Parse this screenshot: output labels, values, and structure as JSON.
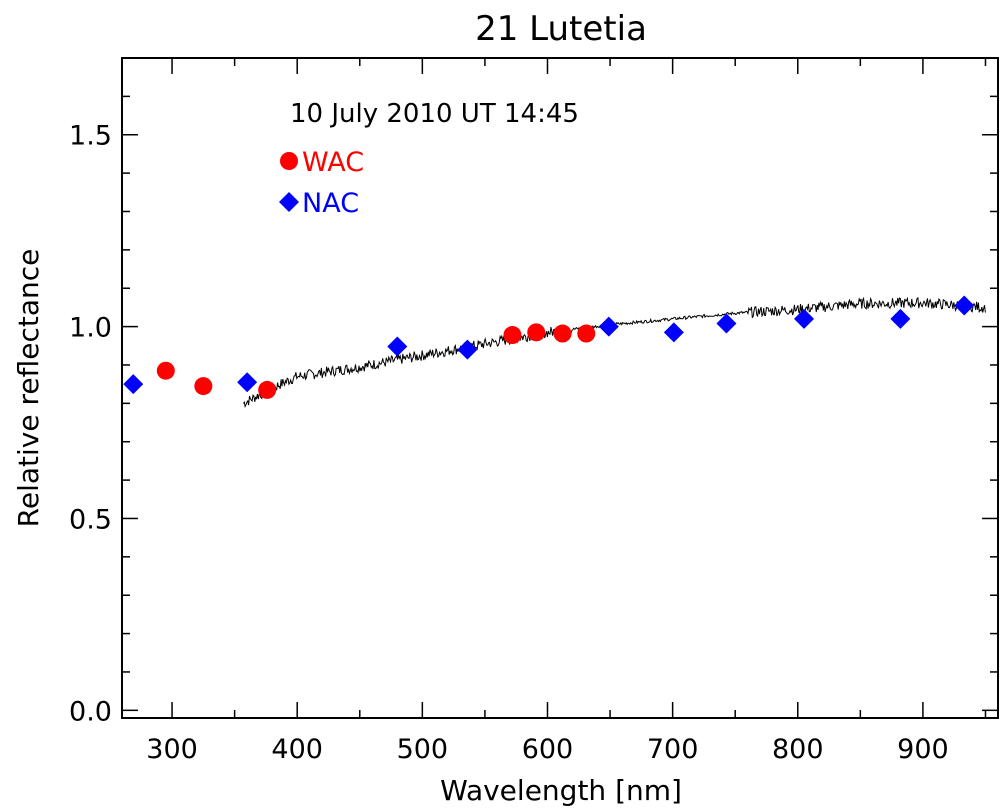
{
  "chart_data": {
    "type": "scatter",
    "title": "21 Lutetia",
    "annotation": "10 July 2010 UT 14:45",
    "xlabel": "Wavelength [nm]",
    "ylabel": "Relative reflectance",
    "xlim": [
      260,
      960
    ],
    "ylim": [
      -0.02,
      1.7
    ],
    "xticks": [
      300,
      400,
      500,
      600,
      700,
      800,
      900
    ],
    "yticks": [
      0.0,
      0.5,
      1.0,
      1.5
    ],
    "xtick_labels": [
      "300",
      "400",
      "500",
      "600",
      "700",
      "800",
      "900"
    ],
    "ytick_labels": [
      "0.0",
      "0.5",
      "1.0",
      "1.5"
    ],
    "legend_position": "top-left",
    "series": [
      {
        "name": "WAC",
        "marker": "circle",
        "color": "#ff0000",
        "points": [
          {
            "x": 295,
            "y": 0.885
          },
          {
            "x": 325,
            "y": 0.845
          },
          {
            "x": 376,
            "y": 0.835
          },
          {
            "x": 572,
            "y": 0.978
          },
          {
            "x": 591,
            "y": 0.985
          },
          {
            "x": 612,
            "y": 0.982
          },
          {
            "x": 631,
            "y": 0.982
          }
        ]
      },
      {
        "name": "NAC",
        "marker": "diamond",
        "color": "#0000ff",
        "points": [
          {
            "x": 269,
            "y": 0.85
          },
          {
            "x": 360,
            "y": 0.855
          },
          {
            "x": 480,
            "y": 0.948
          },
          {
            "x": 536,
            "y": 0.94
          },
          {
            "x": 649,
            "y": 1.0
          },
          {
            "x": 701,
            "y": 0.985
          },
          {
            "x": 743,
            "y": 1.008
          },
          {
            "x": 805,
            "y": 1.02
          },
          {
            "x": 882,
            "y": 1.02
          },
          {
            "x": 933,
            "y": 1.055
          }
        ]
      },
      {
        "type": "line",
        "color": "#000000",
        "points": [
          {
            "x": 357,
            "y": 0.8
          },
          {
            "x": 380,
            "y": 0.84
          },
          {
            "x": 400,
            "y": 0.87
          },
          {
            "x": 450,
            "y": 0.895
          },
          {
            "x": 500,
            "y": 0.925
          },
          {
            "x": 550,
            "y": 0.955
          },
          {
            "x": 600,
            "y": 0.985
          },
          {
            "x": 650,
            "y": 1.005
          },
          {
            "x": 700,
            "y": 1.02
          },
          {
            "x": 750,
            "y": 1.035
          },
          {
            "x": 800,
            "y": 1.045
          },
          {
            "x": 850,
            "y": 1.06
          },
          {
            "x": 900,
            "y": 1.062
          },
          {
            "x": 950,
            "y": 1.05
          }
        ]
      }
    ]
  }
}
